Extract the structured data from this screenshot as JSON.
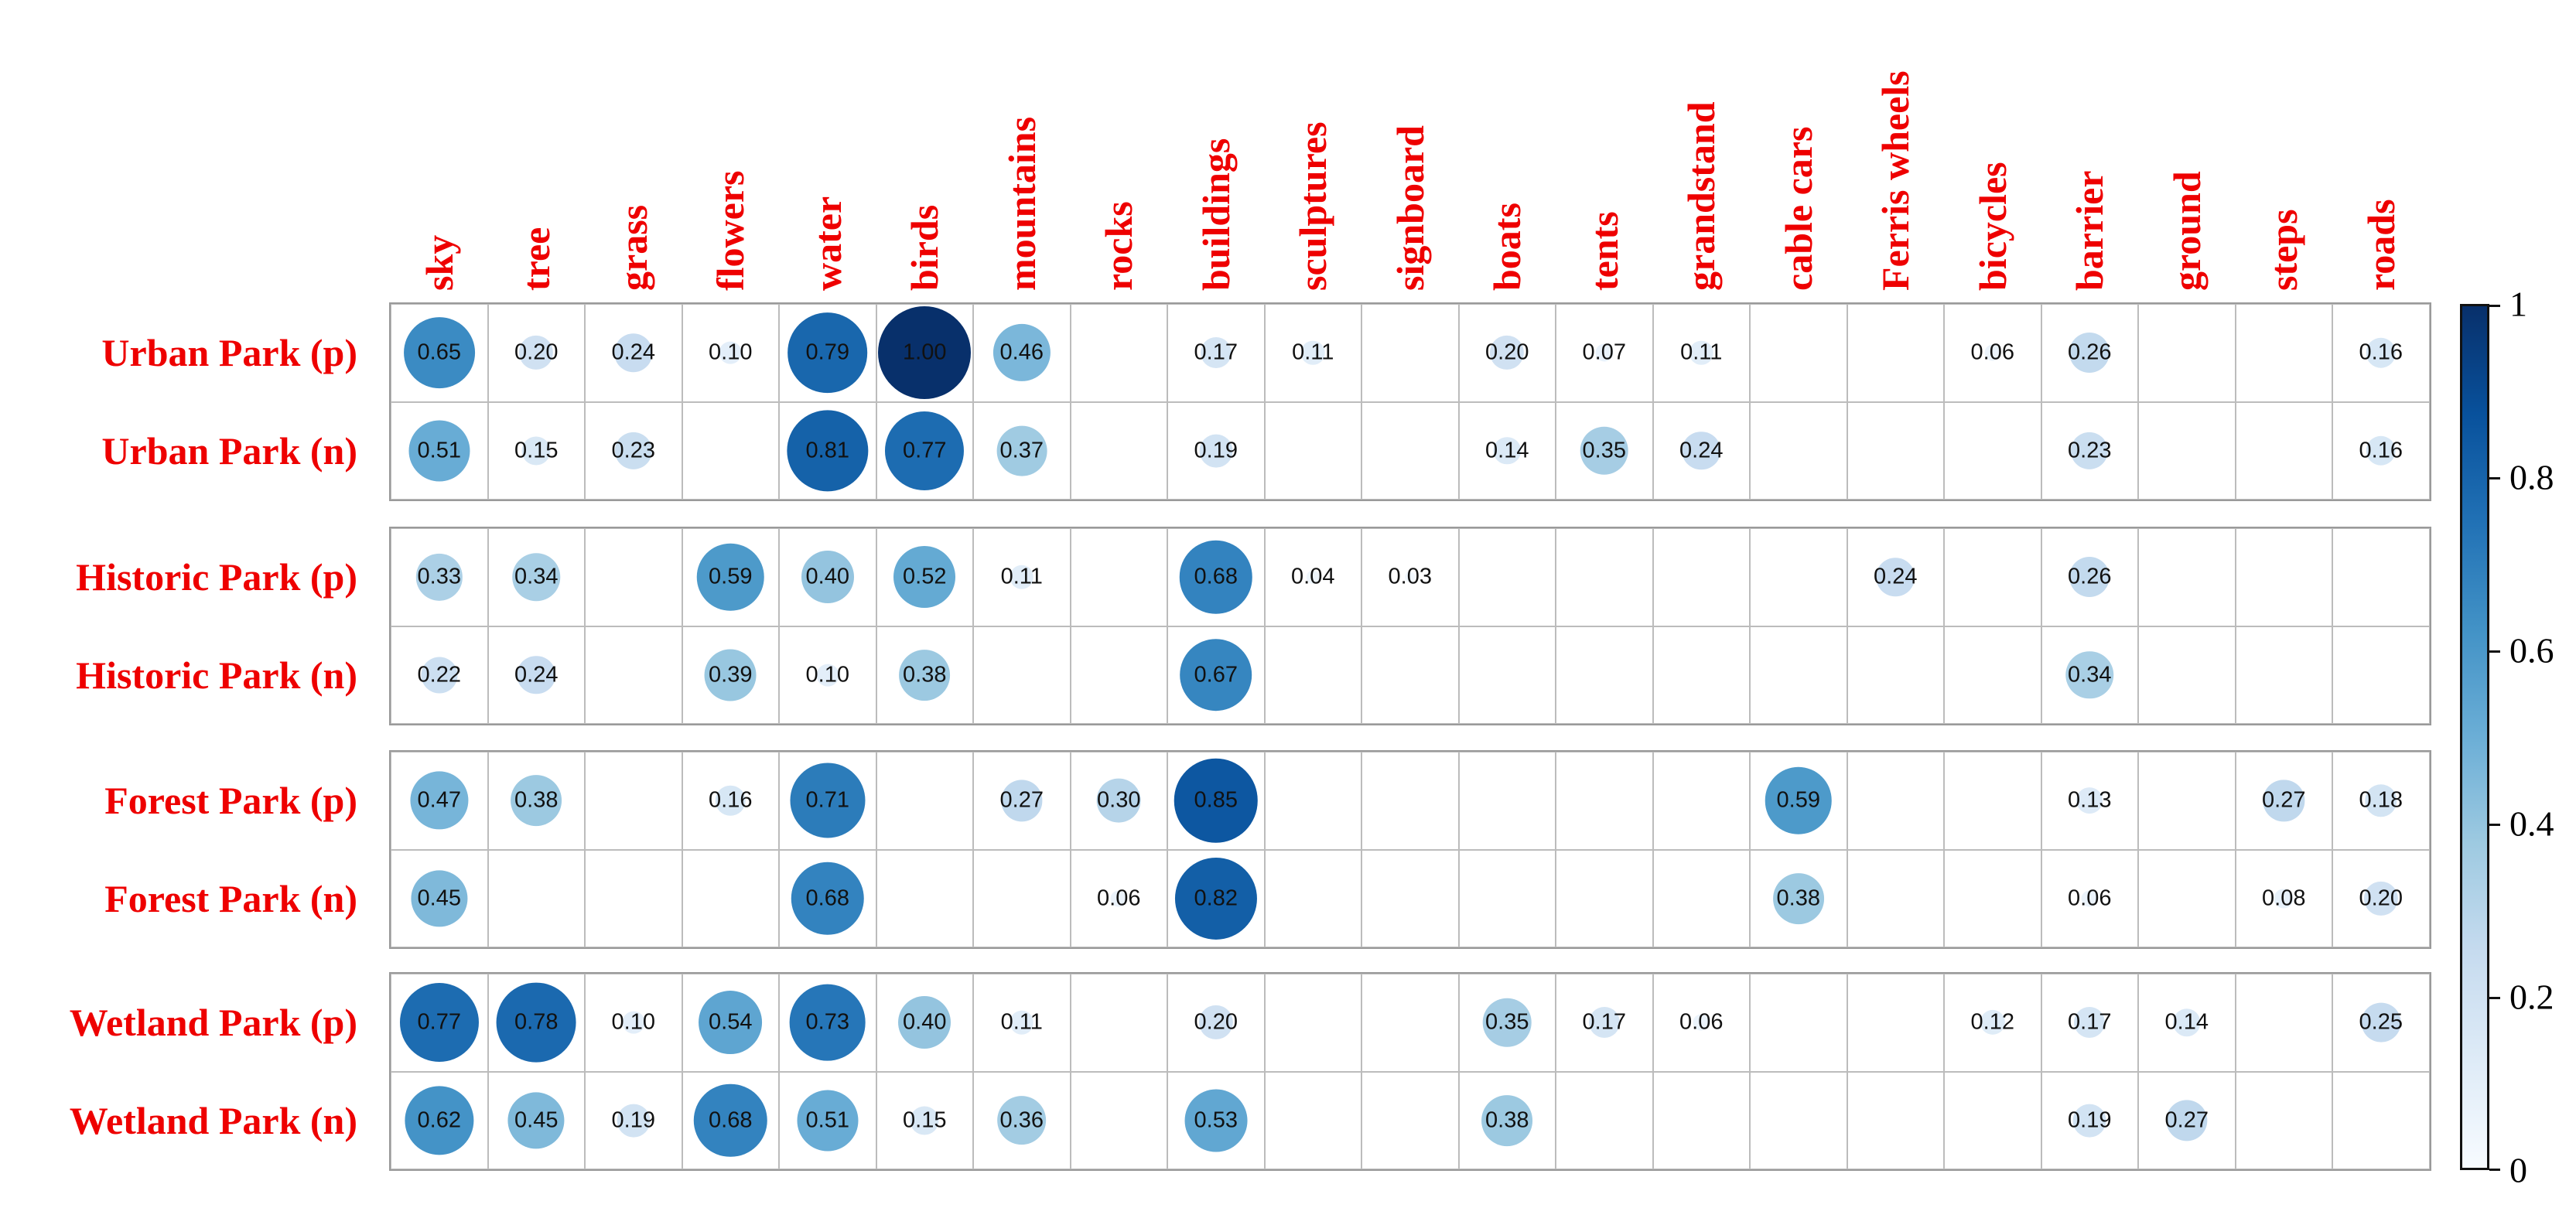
{
  "chart_data": {
    "type": "heatmap",
    "subtype": "bubble-matrix",
    "title": "",
    "columns": [
      "sky",
      "tree",
      "grass",
      "flowers",
      "water",
      "birds",
      "mountains",
      "rocks",
      "buildings",
      "sculptures",
      "signboard",
      "boats",
      "tents",
      "grandstand",
      "cable cars",
      "Ferris wheels",
      "bicycles",
      "barrier",
      "ground",
      "steps",
      "roads"
    ],
    "rows": [
      {
        "label": "Urban Park (p)",
        "values": [
          0.65,
          0.2,
          0.24,
          0.1,
          0.79,
          1.0,
          0.46,
          null,
          0.17,
          0.11,
          null,
          0.2,
          0.07,
          0.11,
          null,
          null,
          0.06,
          0.26,
          null,
          null,
          0.16
        ]
      },
      {
        "label": "Urban Park (n)",
        "values": [
          0.51,
          0.15,
          0.23,
          null,
          0.81,
          0.77,
          0.37,
          null,
          0.19,
          null,
          null,
          0.14,
          0.35,
          0.24,
          null,
          null,
          null,
          0.23,
          null,
          null,
          0.16
        ]
      },
      {
        "label": "Historic Park (p)",
        "values": [
          0.33,
          0.34,
          null,
          0.59,
          0.4,
          0.52,
          0.11,
          null,
          0.68,
          0.04,
          0.03,
          null,
          null,
          null,
          null,
          0.24,
          null,
          0.26,
          null,
          null,
          null
        ]
      },
      {
        "label": "Historic Park (n)",
        "values": [
          0.22,
          0.24,
          null,
          0.39,
          0.1,
          0.38,
          null,
          null,
          0.67,
          null,
          null,
          null,
          null,
          null,
          null,
          null,
          null,
          0.34,
          null,
          null,
          null
        ]
      },
      {
        "label": "Forest Park (p)",
        "values": [
          0.47,
          0.38,
          null,
          0.16,
          0.71,
          null,
          0.27,
          0.3,
          0.85,
          null,
          null,
          null,
          null,
          null,
          0.59,
          null,
          null,
          0.13,
          null,
          0.27,
          0.18
        ]
      },
      {
        "label": "Forest Park (n)",
        "values": [
          0.45,
          null,
          null,
          null,
          0.68,
          null,
          null,
          0.06,
          0.82,
          null,
          null,
          null,
          null,
          null,
          0.38,
          null,
          null,
          0.06,
          null,
          0.08,
          0.2
        ]
      },
      {
        "label": "Wetland Park (p)",
        "values": [
          0.77,
          0.78,
          0.1,
          0.54,
          0.73,
          0.4,
          0.11,
          null,
          0.2,
          null,
          null,
          0.35,
          0.17,
          0.06,
          null,
          null,
          0.12,
          0.17,
          0.14,
          null,
          0.25
        ]
      },
      {
        "label": "Wetland Park (n)",
        "values": [
          0.62,
          0.45,
          0.19,
          0.68,
          0.51,
          0.15,
          0.36,
          null,
          0.53,
          null,
          null,
          0.38,
          null,
          null,
          null,
          null,
          null,
          0.19,
          0.27,
          null,
          null
        ]
      }
    ],
    "row_groups": [
      [
        0,
        1
      ],
      [
        2,
        3
      ],
      [
        4,
        5
      ],
      [
        6,
        7
      ]
    ],
    "value_range": [
      0,
      1
    ],
    "value_decimals": 2,
    "grid_on": true,
    "colorbar": {
      "position": "right",
      "tick_labels": [
        "1",
        "0.8",
        "0.6",
        "0.4",
        "0.2",
        "0"
      ],
      "tick_values": [
        1,
        0.8,
        0.6,
        0.4,
        0.2,
        0
      ]
    },
    "colors": {
      "label_red": "#ee0000",
      "value_text": "#111111",
      "cell_border": "#bcbcbc",
      "group_border": "#9a9a9a",
      "colormap_name": "Blues",
      "colormap_anchors": [
        [
          0.0,
          "#f7fbff"
        ],
        [
          0.125,
          "#deebf7"
        ],
        [
          0.25,
          "#c6dbef"
        ],
        [
          0.375,
          "#9ecae1"
        ],
        [
          0.5,
          "#6baed6"
        ],
        [
          0.625,
          "#4292c6"
        ],
        [
          0.75,
          "#2171b5"
        ],
        [
          0.875,
          "#08519c"
        ],
        [
          1.0,
          "#08306b"
        ]
      ]
    }
  }
}
